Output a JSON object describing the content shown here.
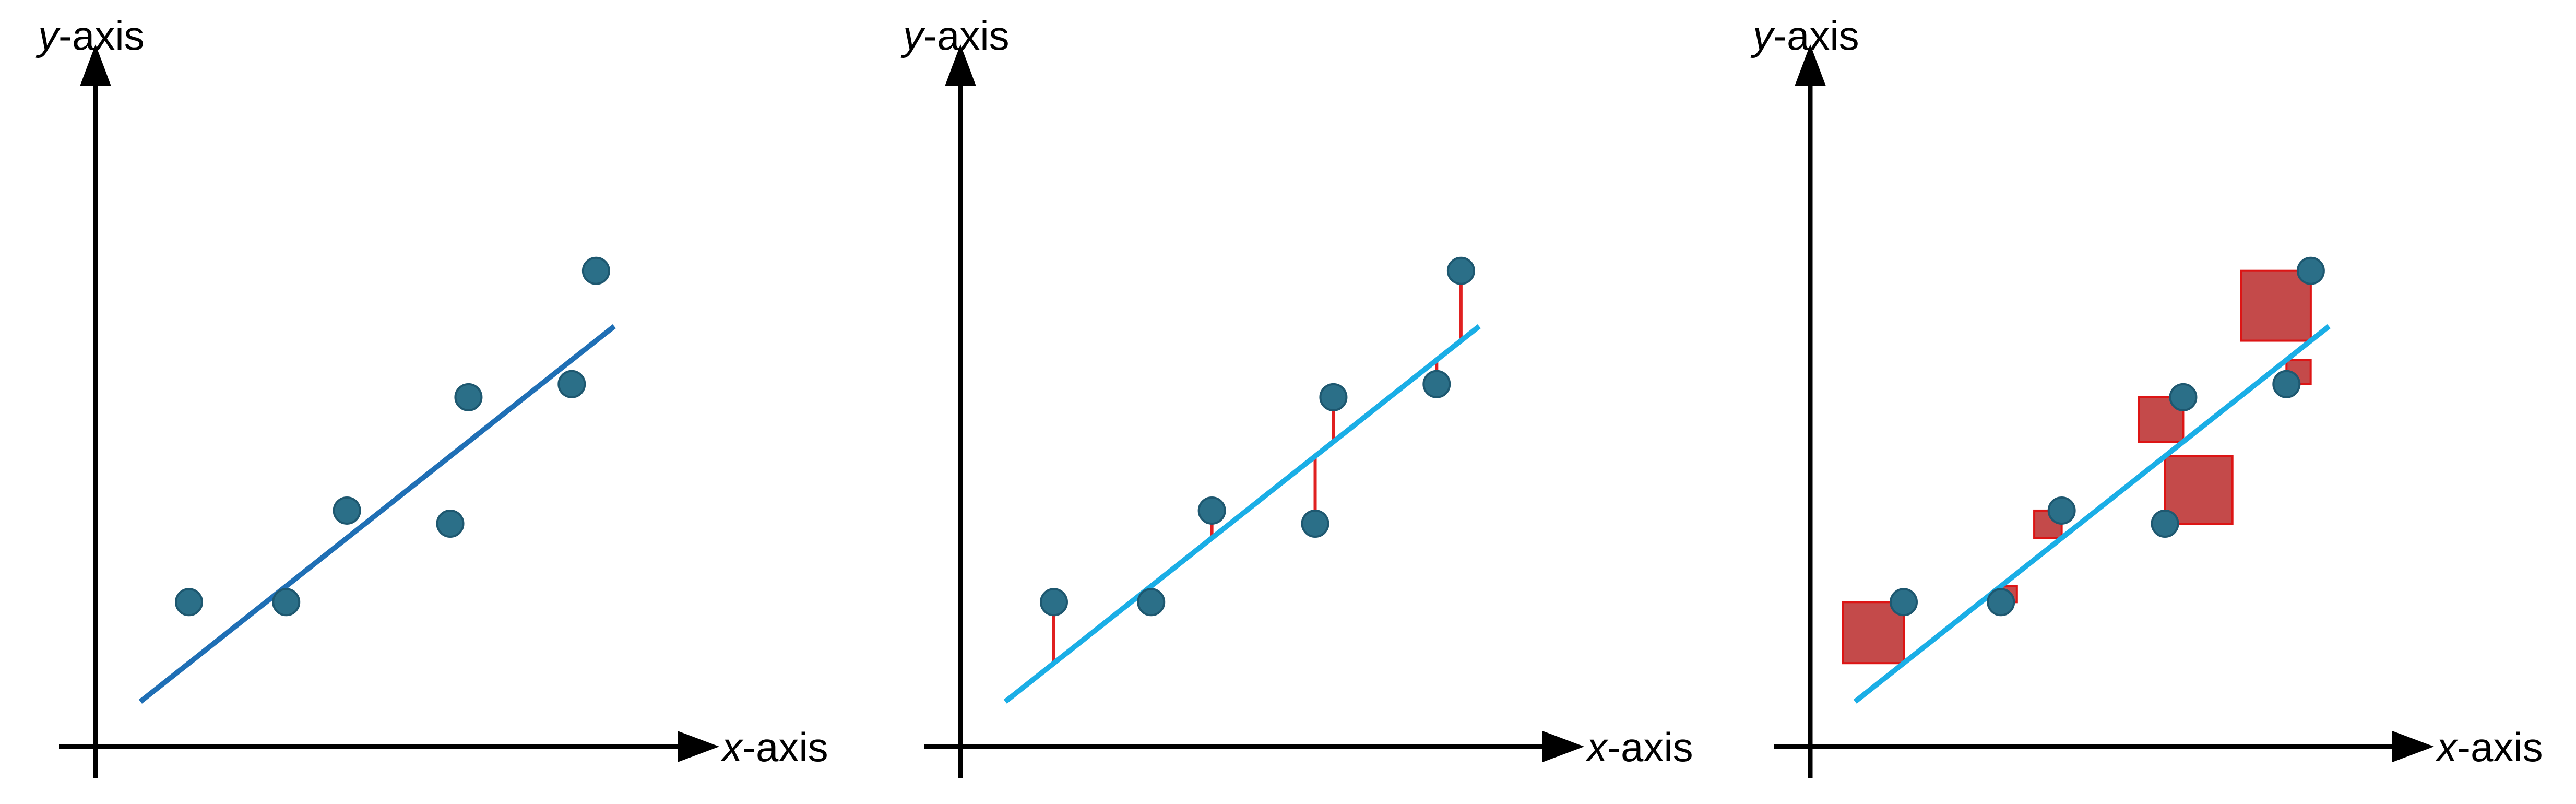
{
  "panels": [
    {
      "name": "scatter-with-fit",
      "x_axis_label": {
        "var": "x",
        "rest": "-axis"
      },
      "y_axis_label": {
        "var": "y",
        "rest": "-axis"
      },
      "fit_line_color": "#1f6fb5",
      "show_residuals": false,
      "show_squares": false
    },
    {
      "name": "residuals",
      "x_axis_label": {
        "var": "x",
        "rest": "-axis"
      },
      "y_axis_label": {
        "var": "y",
        "rest": "-axis"
      },
      "fit_line_color": "#1aaee6",
      "show_residuals": true,
      "show_squares": false
    },
    {
      "name": "squared-residuals",
      "x_axis_label": {
        "var": "x",
        "rest": "-axis"
      },
      "y_axis_label": {
        "var": "y",
        "rest": "-axis"
      },
      "fit_line_color": "#1aaee6",
      "show_residuals": false,
      "show_squares": true
    }
  ],
  "points": [
    {
      "x": 1.0,
      "y": 2.2
    },
    {
      "x": 2.6,
      "y": 2.2
    },
    {
      "x": 3.6,
      "y": 4.3
    },
    {
      "x": 5.3,
      "y": 4.0
    },
    {
      "x": 5.6,
      "y": 6.9
    },
    {
      "x": 7.3,
      "y": 7.2
    },
    {
      "x": 7.7,
      "y": 9.8
    }
  ],
  "fit_line": {
    "slope": 1.104,
    "intercept": -0.304,
    "x_start": 0.0,
    "x_end": 8.5
  },
  "colors": {
    "point_fill": "#2b6f88",
    "point_stroke": "#1e5870",
    "residual": "#e02020",
    "square_fill": "#c44a4a",
    "square_stroke": "#dd1515",
    "axis": "#000000"
  }
}
